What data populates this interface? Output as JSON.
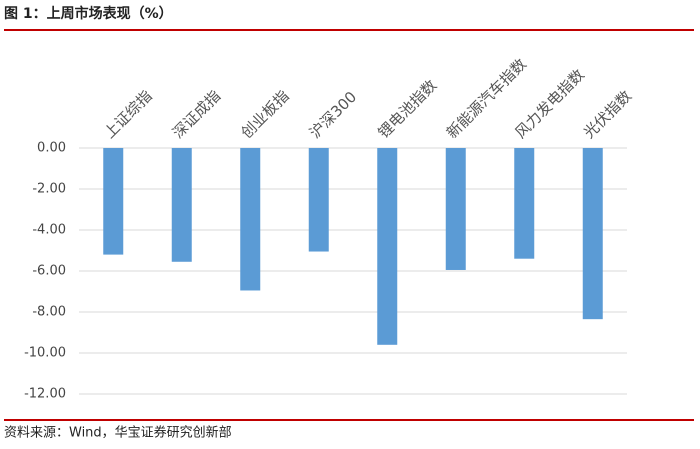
{
  "chart_data": {
    "type": "bar",
    "title": "图 1：上周市场表现（%）",
    "source": "资料来源：Wind，华宝证券研究创新部",
    "categories": [
      "上证综指",
      "深证成指",
      "创业板指",
      "沪深300",
      "锂电池指数",
      "新能源汽车指数",
      "风力发电指数",
      "光伏指数"
    ],
    "values": [
      -5.2,
      -5.55,
      -6.95,
      -5.05,
      -9.6,
      -5.95,
      -5.4,
      -8.35
    ],
    "color": "#5b9bd5",
    "ylim": [
      -12,
      0
    ],
    "yticks": [
      {
        "value": 0,
        "label": "0.00"
      },
      {
        "value": -2,
        "label": "-2.00"
      },
      {
        "value": -4,
        "label": "-4.00"
      },
      {
        "value": -6,
        "label": "-6.00"
      },
      {
        "value": -8,
        "label": "-8.00"
      },
      {
        "value": -10,
        "label": "-10.00"
      },
      {
        "value": -12,
        "label": "-12.00"
      }
    ],
    "grid": true
  }
}
